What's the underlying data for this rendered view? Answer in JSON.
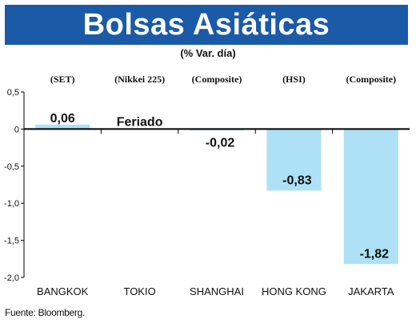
{
  "title": "Bolsas Asiáticas",
  "subtitle": "(% Var. día)",
  "source": "Fuente: Bloomberg.",
  "colors": {
    "title_bar": "#1b5aa7",
    "bar": "#aee1f5",
    "axis": "#000000",
    "grid": "#bdbdbd"
  },
  "chart_data": {
    "type": "bar",
    "title": "Bolsas Asiáticas",
    "subtitle": "(% Var. día)",
    "categories": [
      "BANGKOK",
      "TOKIO",
      "SHANGHAI",
      "HONG KONG",
      "JAKARTA"
    ],
    "index_labels": [
      "(SET)",
      "(Nikkei 225)",
      "(Composite)",
      "(HSI)",
      "(Composite)"
    ],
    "values": [
      0.06,
      null,
      -0.02,
      -0.83,
      -1.82
    ],
    "value_labels": [
      "0,06",
      "Feriado",
      "-0,02",
      "-0,83",
      "-1,82"
    ],
    "ylim": [
      -2.0,
      0.5
    ],
    "yticks": [
      0.5,
      0,
      -0.5,
      -1.0,
      -1.5,
      -2.0
    ],
    "ytick_labels": [
      "0,5",
      "0",
      "-0,5",
      "-1,0",
      "-1,5",
      "-2,0"
    ],
    "grid": false,
    "legend": "none"
  }
}
